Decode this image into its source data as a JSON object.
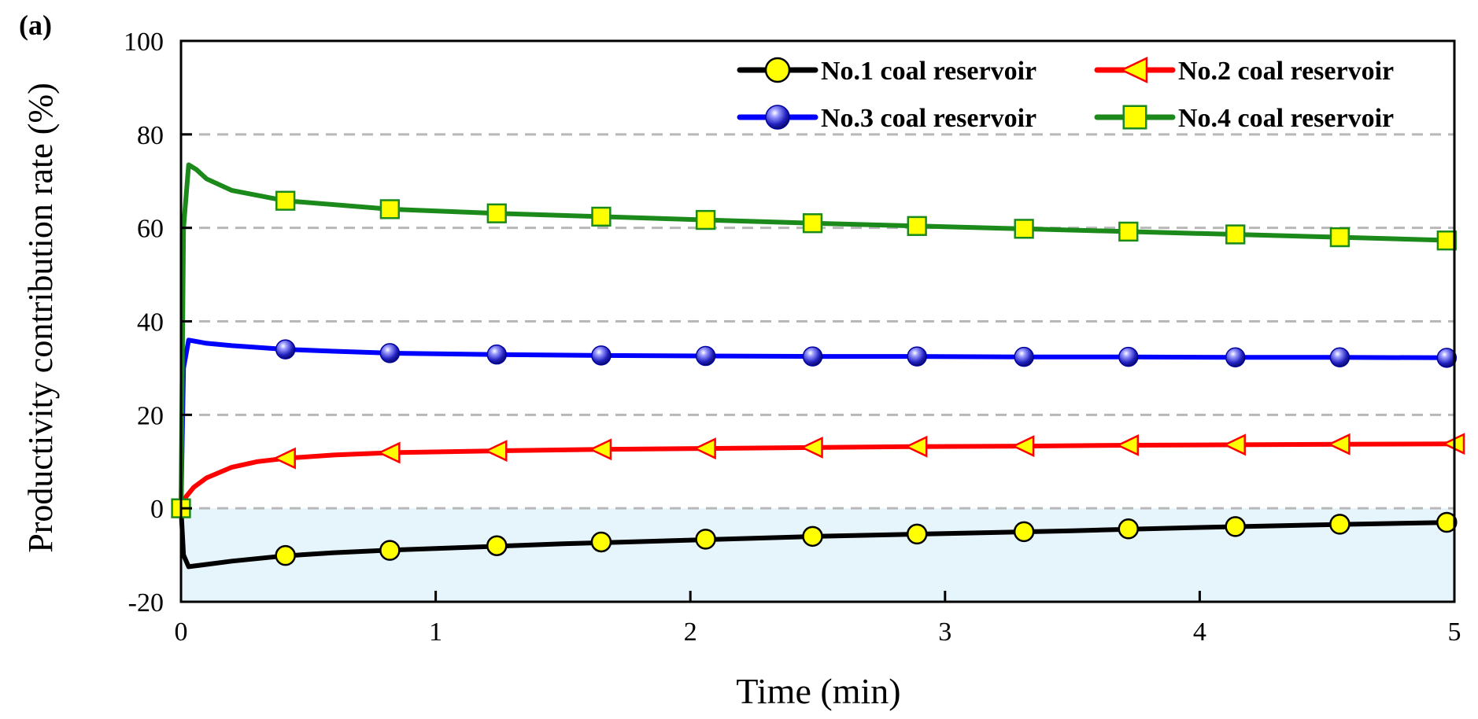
{
  "panel_label": "(a)",
  "chart_data": {
    "type": "line",
    "title": "",
    "xlabel": "Time (min)",
    "ylabel": "Productivity contribution rate (%)",
    "xlim": [
      0,
      5
    ],
    "ylim": [
      -20,
      100
    ],
    "xticks": [
      0,
      1,
      2,
      3,
      4,
      5
    ],
    "yticks": [
      -20,
      0,
      20,
      40,
      60,
      80,
      100
    ],
    "grid_y": [
      0,
      20,
      40,
      60,
      80
    ],
    "negative_region_shaded": true,
    "legend_position": "top-right",
    "series": [
      {
        "name": "No.1 coal reservoir",
        "color": "#000000",
        "marker": "circle",
        "marker_fill": "#ffff00",
        "line_x": [
          0,
          0.01,
          0.03,
          0.1,
          0.2,
          0.4,
          0.6,
          0.8,
          1.0,
          1.5,
          2.0,
          2.5,
          3.0,
          3.5,
          4.0,
          4.5,
          5.0
        ],
        "line_y": [
          0,
          -10,
          -12.5,
          -12,
          -11.3,
          -10.2,
          -9.5,
          -9.0,
          -8.6,
          -7.6,
          -6.8,
          -6.0,
          -5.4,
          -4.8,
          -4.1,
          -3.5,
          -3.0
        ],
        "marker_x": [
          0.41,
          0.82,
          1.24,
          1.65,
          2.06,
          2.48,
          2.89,
          3.31,
          3.72,
          4.14,
          4.55,
          4.97
        ],
        "marker_y": [
          -10.1,
          -9.0,
          -8.0,
          -7.2,
          -6.6,
          -6.0,
          -5.5,
          -5.0,
          -4.4,
          -3.9,
          -3.4,
          -3.0
        ]
      },
      {
        "name": "No.2 coal reservoir",
        "color": "#ff0000",
        "marker": "triangle-left",
        "marker_fill": "#ffff00",
        "line_x": [
          0,
          0.02,
          0.05,
          0.1,
          0.2,
          0.3,
          0.41,
          0.6,
          0.82,
          1.24,
          1.65,
          2.06,
          2.48,
          2.89,
          3.31,
          3.72,
          4.14,
          4.55,
          5.0
        ],
        "line_y": [
          0,
          2.5,
          4.5,
          6.5,
          8.8,
          10.0,
          10.7,
          11.4,
          11.9,
          12.3,
          12.6,
          12.8,
          13.0,
          13.2,
          13.3,
          13.5,
          13.6,
          13.7,
          13.8
        ],
        "marker_x": [
          0.41,
          0.82,
          1.24,
          1.65,
          2.06,
          2.48,
          2.89,
          3.31,
          3.72,
          4.14,
          4.55,
          5.0
        ],
        "marker_y": [
          10.7,
          11.9,
          12.3,
          12.6,
          12.8,
          13.0,
          13.2,
          13.3,
          13.5,
          13.6,
          13.7,
          13.8
        ]
      },
      {
        "name": "No.3 coal reservoir",
        "color": "#0000ff",
        "marker": "sphere",
        "marker_fill": "#3a3ad0",
        "line_x": [
          0,
          0.01,
          0.03,
          0.1,
          0.2,
          0.41,
          0.6,
          0.82,
          1.24,
          1.65,
          2.06,
          2.48,
          2.89,
          3.31,
          3.72,
          4.14,
          4.55,
          5.0
        ],
        "line_y": [
          0,
          30,
          36,
          35.3,
          34.8,
          34.0,
          33.6,
          33.2,
          32.9,
          32.7,
          32.6,
          32.5,
          32.5,
          32.4,
          32.4,
          32.3,
          32.3,
          32.2
        ],
        "marker_x": [
          0.41,
          0.82,
          1.24,
          1.65,
          2.06,
          2.48,
          2.89,
          3.31,
          3.72,
          4.14,
          4.55,
          4.97
        ],
        "marker_y": [
          34.0,
          33.2,
          32.9,
          32.7,
          32.6,
          32.5,
          32.5,
          32.4,
          32.4,
          32.3,
          32.3,
          32.2
        ]
      },
      {
        "name": "No.4 coal reservoir",
        "color": "#1b8a1b",
        "marker": "square",
        "marker_fill": "#ffff00",
        "line_x": [
          0,
          0.01,
          0.03,
          0.06,
          0.1,
          0.2,
          0.41,
          0.82,
          1.24,
          1.65,
          2.06,
          2.48,
          2.89,
          3.31,
          3.72,
          4.14,
          4.55,
          5.0
        ],
        "line_y": [
          0,
          60,
          73.5,
          72.5,
          70.5,
          68.0,
          65.8,
          64.0,
          63.1,
          62.4,
          61.7,
          61.0,
          60.4,
          59.8,
          59.2,
          58.6,
          58.0,
          57.3
        ],
        "marker_x": [
          0.0,
          0.41,
          0.82,
          1.24,
          1.65,
          2.06,
          2.48,
          2.89,
          3.31,
          3.72,
          4.14,
          4.55,
          4.97
        ],
        "marker_y": [
          0.0,
          65.8,
          64.0,
          63.1,
          62.4,
          61.7,
          61.0,
          60.4,
          59.8,
          59.2,
          58.6,
          58.0,
          57.3
        ]
      }
    ]
  }
}
